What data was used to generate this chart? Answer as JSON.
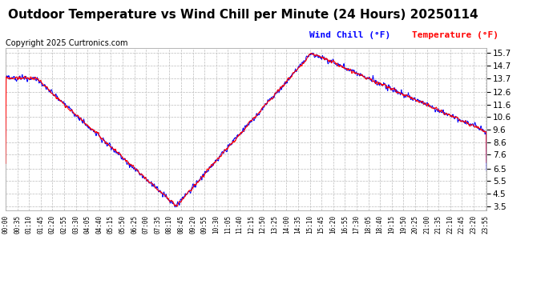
{
  "title": "Outdoor Temperature vs Wind Chill per Minute (24 Hours) 20250114",
  "copyright": "Copyright 2025 Curtronics.com",
  "legend_wind_chill": "Wind Chill (°F)",
  "legend_temperature": "Temperature (°F)",
  "wind_chill_color": "#0000ff",
  "temperature_color": "#ff0000",
  "background_color": "#ffffff",
  "grid_color": "#bbbbbb",
  "yticks": [
    3.5,
    4.5,
    5.5,
    6.5,
    7.6,
    8.6,
    9.6,
    10.6,
    11.6,
    12.6,
    13.7,
    14.7,
    15.7
  ],
  "ylim": [
    3.2,
    16.1
  ],
  "title_fontsize": 11,
  "copyright_fontsize": 7,
  "legend_fontsize": 8,
  "ytick_fontsize": 7.5,
  "xtick_fontsize": 5.5
}
